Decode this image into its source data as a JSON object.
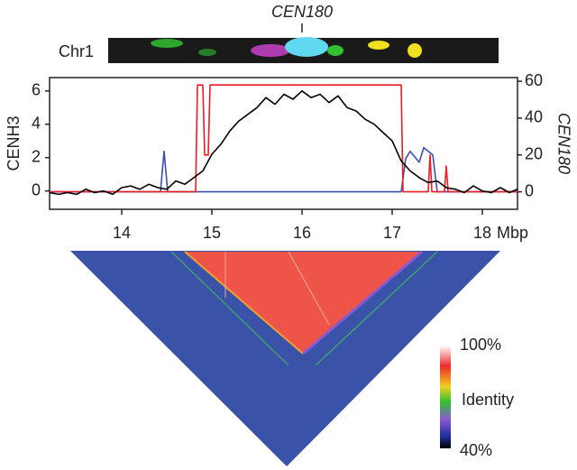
{
  "strip": {
    "label": "Chr1",
    "marker": "CEN180"
  },
  "chart_data": {
    "type": "line",
    "xlabel": "Mbp",
    "ylabel": "CENH3",
    "y2label": "CEN180",
    "xlim": [
      13.2,
      18.39
    ],
    "xticks": [
      14,
      15,
      16,
      17,
      18
    ],
    "ylim": [
      -1.1,
      6.8
    ],
    "yticks": [
      0,
      2,
      4,
      6
    ],
    "y2lim": [
      -9.5,
      62
    ],
    "y2ticks": [
      0,
      20,
      40,
      60
    ],
    "grid": false,
    "series": [
      {
        "color": "#3a4fb0",
        "axis": "y2",
        "x": [
          13.2,
          14.43,
          14.47,
          14.51,
          17.1,
          17.15,
          17.2,
          17.3,
          17.35,
          17.45,
          17.5,
          18.39
        ],
        "values": [
          0,
          0,
          22,
          0,
          0,
          18,
          22,
          16,
          24,
          20,
          0,
          0
        ]
      },
      {
        "color": "#ec1c24",
        "axis": "y2",
        "x": [
          13.2,
          14.82,
          14.84,
          14.9,
          14.92,
          14.96,
          14.98,
          17.1,
          17.12,
          17.4,
          17.42,
          17.44,
          17.58,
          17.6,
          17.62,
          18.39
        ],
        "values": [
          0,
          0,
          58,
          58,
          20,
          20,
          58,
          58,
          0,
          0,
          20,
          0,
          0,
          14,
          0,
          0
        ]
      },
      {
        "color": "#000000",
        "axis": "y",
        "x": [
          13.2,
          13.3,
          13.4,
          13.5,
          13.6,
          13.7,
          13.8,
          13.9,
          14.0,
          14.1,
          14.2,
          14.3,
          14.4,
          14.5,
          14.6,
          14.7,
          14.8,
          14.9,
          15.0,
          15.1,
          15.2,
          15.3,
          15.4,
          15.5,
          15.6,
          15.7,
          15.8,
          15.9,
          16.0,
          16.1,
          16.2,
          16.3,
          16.4,
          16.5,
          16.6,
          16.7,
          16.8,
          16.9,
          17.0,
          17.1,
          17.2,
          17.3,
          17.4,
          17.5,
          17.6,
          17.7,
          17.8,
          17.9,
          18.0,
          18.1,
          18.2,
          18.3,
          18.39
        ],
        "values": [
          -0.1,
          -0.2,
          -0.1,
          -0.2,
          0.1,
          -0.1,
          0,
          -0.2,
          0.2,
          0.3,
          0.1,
          0.4,
          0.2,
          0.1,
          0.6,
          0.4,
          0.8,
          1.2,
          2.2,
          2.8,
          3.6,
          4.2,
          4.6,
          5.0,
          5.6,
          5.2,
          5.8,
          5.5,
          6.0,
          5.6,
          5.8,
          5.3,
          5.7,
          5.0,
          4.8,
          4.3,
          4.0,
          3.5,
          3.0,
          1.8,
          1.2,
          0.8,
          0.5,
          0.6,
          0.2,
          0.1,
          -0.1,
          0.3,
          0,
          -0.1,
          0.2,
          -0.1,
          0.1
        ]
      }
    ]
  },
  "heatmap": {
    "legend": {
      "max": "100%",
      "title": "Identity",
      "min": "40%"
    }
  }
}
